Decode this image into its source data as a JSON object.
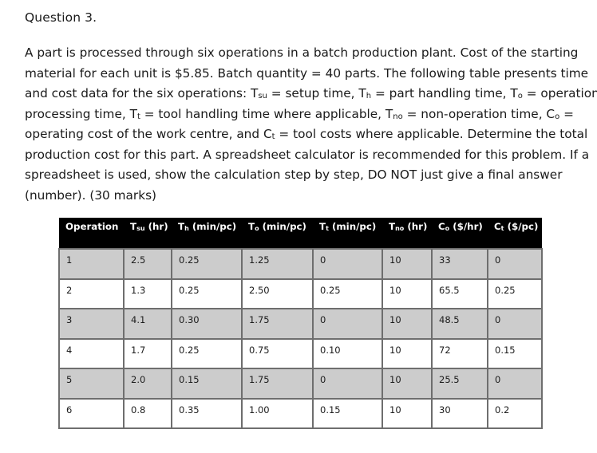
{
  "question": {
    "title": "Question 3.",
    "paragraph_lines": [
      "A part is processed through six operations in a batch production plant. Cost of the starting",
      "material for each unit is $5.85. Batch quantity = 40 parts. The following table presents time",
      "and cost data for the six operations: T",
      "processing time, T",
      "operating cost of the work centre, and C",
      "production cost for this part. A spreadsheet calculator is recommended for this problem. If a",
      "spreadsheet is used, show the calculation step by step, DO NOT just give a final answer",
      "(number).  (30 marks)"
    ],
    "line3": {
      "a": "and cost data for the six operations: T",
      "su": "su",
      "b": " = setup time, T",
      "h": "h",
      "c": " = part handling time, T",
      "o": "o",
      "d": " = operation"
    },
    "line4": {
      "a": "processing time, T",
      "t": "t",
      "b": " = tool handling time where applicable, T",
      "no": "no",
      "c": " = non-operation time, C",
      "o": "o",
      "d": " ="
    },
    "line5": {
      "a": "operating cost of the work centre, and C",
      "t": "t",
      "b": " = tool costs where applicable. Determine the total"
    }
  },
  "table": {
    "headers": [
      {
        "main": "Operation",
        "sub": "",
        "unit": ""
      },
      {
        "main": "T",
        "sub": "su",
        "unit": " (hr)"
      },
      {
        "main": "T",
        "sub": "h",
        "unit": " (min/pc)"
      },
      {
        "main": "T",
        "sub": "o",
        "unit": " (min/pc)"
      },
      {
        "main": "T",
        "sub": "t",
        "unit": " (min/pc)"
      },
      {
        "main": "T",
        "sub": "no",
        "unit": " (hr)"
      },
      {
        "main": "C",
        "sub": "o",
        "unit": " ($/hr)"
      },
      {
        "main": "C",
        "sub": "t",
        "unit": " ($/pc)"
      }
    ],
    "rows": [
      [
        "1",
        "2.5",
        "0.25",
        "1.25",
        "0",
        "10",
        "33",
        "0"
      ],
      [
        "2",
        "1.3",
        "0.25",
        "2.50",
        "0.25",
        "10",
        "65.5",
        "0.25"
      ],
      [
        "3",
        "4.1",
        "0.30",
        "1.75",
        "0",
        "10",
        "48.5",
        "0"
      ],
      [
        "4",
        "1.7",
        "0.25",
        "0.75",
        "0.10",
        "10",
        "72",
        "0.15"
      ],
      [
        "5",
        "2.0",
        "0.15",
        "1.75",
        "0",
        "10",
        "25.5",
        "0"
      ],
      [
        "6",
        "0.8",
        "0.35",
        "1.00",
        "0.15",
        "10",
        "30",
        "0.2"
      ]
    ],
    "colors": {
      "header_bg": "#000000",
      "header_text": "#ffffff",
      "shaded_row": "#cccccc",
      "plain_row": "#ffffff",
      "border": "#6e6e6e"
    }
  }
}
